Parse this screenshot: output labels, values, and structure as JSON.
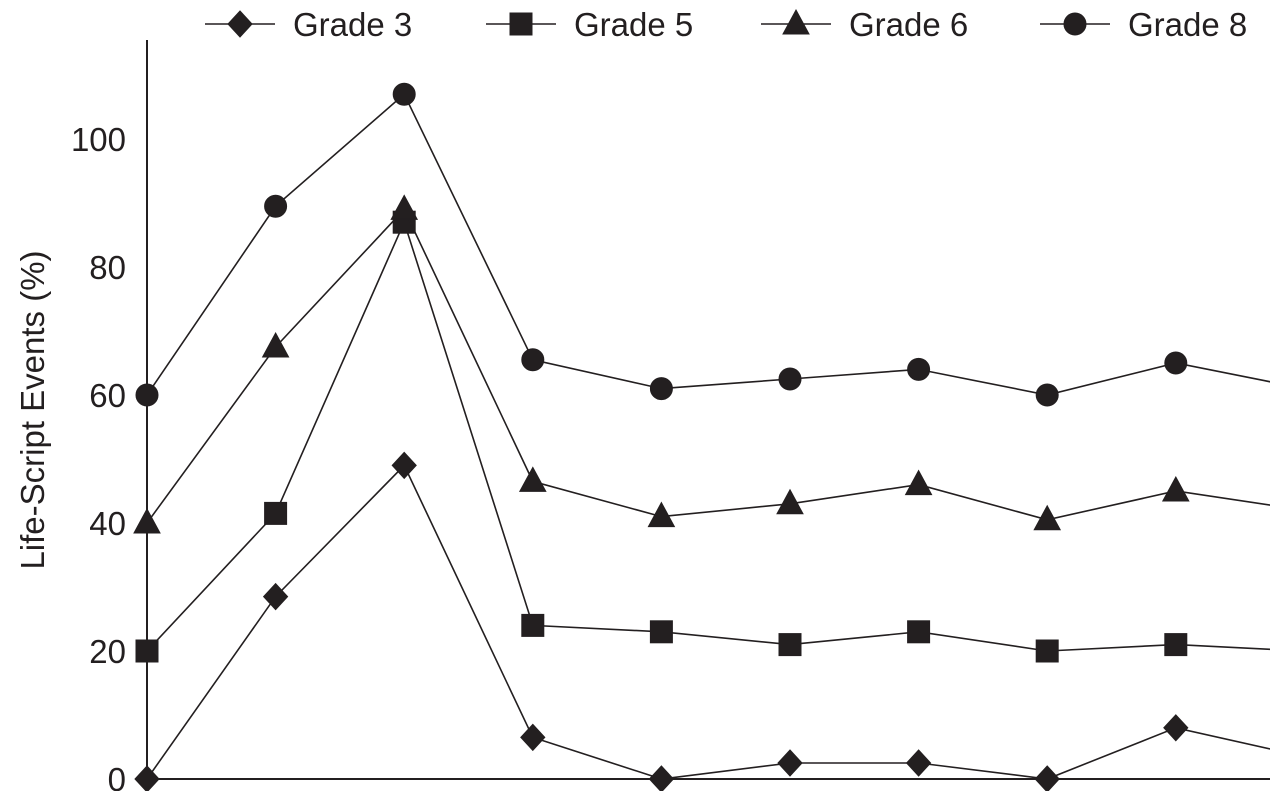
{
  "chart_data": {
    "type": "line",
    "title": "",
    "xlabel": "",
    "ylabel": "Life-Script Events (%)",
    "ylim": [
      0,
      110
    ],
    "yticks": [
      0,
      20,
      40,
      60,
      80,
      100
    ],
    "x": [
      1,
      2,
      3,
      4,
      5,
      6,
      7,
      8,
      9,
      10
    ],
    "grid": false,
    "legend": "top",
    "series": [
      {
        "name": "Grade 3",
        "marker": "diamond",
        "values": [
          0,
          28.5,
          49,
          6.5,
          0,
          2.5,
          2.5,
          0,
          8,
          3.5
        ]
      },
      {
        "name": "Grade 5",
        "marker": "square",
        "values": [
          20,
          41.5,
          87,
          24,
          23,
          21,
          23,
          20,
          21,
          20
        ]
      },
      {
        "name": "Grade 6",
        "marker": "triangle",
        "values": [
          40,
          67.5,
          89,
          46.5,
          41,
          43,
          46,
          40.5,
          45,
          42
        ]
      },
      {
        "name": "Grade 8",
        "marker": "circle",
        "values": [
          60,
          89.5,
          107,
          65.5,
          61,
          62.5,
          64,
          60,
          65,
          61
        ]
      }
    ],
    "colors": {
      "ink": "#231f20",
      "background": "#ffffff"
    }
  }
}
